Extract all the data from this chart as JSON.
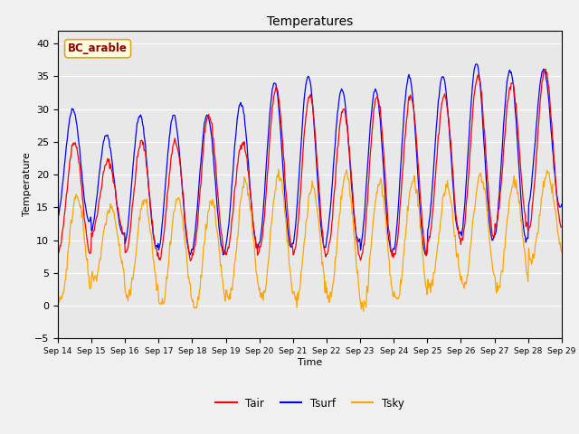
{
  "title": "Temperatures",
  "xlabel": "Time",
  "ylabel": "Temperature",
  "ylim": [
    -5,
    42
  ],
  "yticks": [
    -5,
    0,
    5,
    10,
    15,
    20,
    25,
    30,
    35,
    40
  ],
  "xlim_labels": [
    "Sep 14",
    "Sep 15",
    "Sep 16",
    "Sep 17",
    "Sep 18",
    "Sep 19",
    "Sep 20",
    "Sep 21",
    "Sep 22",
    "Sep 23",
    "Sep 24",
    "Sep 25",
    "Sep 26",
    "Sep 27",
    "Sep 28",
    "Sep 29"
  ],
  "annotation": "BC_arable",
  "plot_bg_color": "#e8e8e8",
  "fig_bg_color": "#f0f0f0",
  "line_Tair_color": "red",
  "line_Tsurf_color": "blue",
  "line_Tsky_color": "orange",
  "legend_labels": [
    "Tair",
    "Tsurf",
    "Tsky"
  ],
  "day_peaks_air": [
    25,
    22,
    25,
    25,
    29,
    25,
    33,
    32,
    30,
    32,
    32,
    32,
    35,
    34,
    36
  ],
  "day_mins_air": [
    8,
    11,
    8,
    7,
    8,
    8,
    9,
    8,
    8,
    7,
    8,
    10,
    10,
    12,
    12
  ],
  "day_peaks_surf": [
    30,
    26,
    29,
    29,
    29,
    31,
    34,
    35,
    33,
    33,
    35,
    35,
    37,
    36,
    36
  ],
  "day_mins_surf": [
    13,
    11,
    9,
    8,
    8,
    9,
    9,
    9,
    10,
    8,
    8,
    11,
    10,
    10,
    15
  ],
  "day_peaks_sky": [
    17,
    15,
    16,
    16,
    16,
    19,
    20,
    18,
    20,
    19,
    19,
    18,
    20,
    19,
    20
  ],
  "day_mins_sky": [
    1,
    4,
    1,
    0,
    -0.5,
    1,
    1,
    1,
    1,
    -0.5,
    1,
    3,
    3,
    3,
    7
  ]
}
